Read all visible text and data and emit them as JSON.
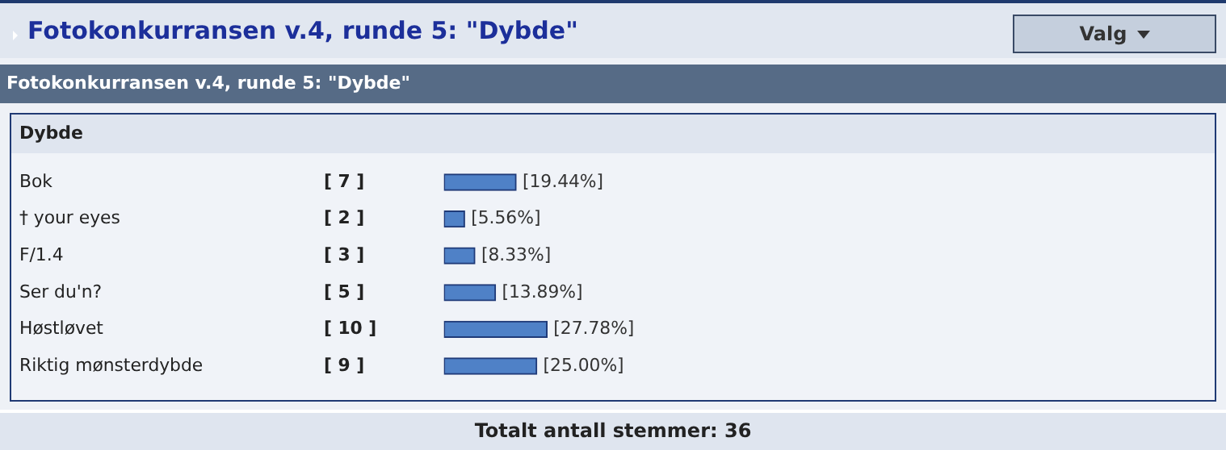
{
  "chart_data": {
    "type": "bar",
    "orientation": "horizontal",
    "title": "Fotokonkurransen v.4, runde 5: \"Dybde\"",
    "subtitle": "Fotokonkurransen v.4, runde 5: \"Dybde\"",
    "categories": [
      "Bok",
      "† your eyes",
      "F/1.4",
      "Ser du'n?",
      "Høstløvet",
      "Riktig mønsterdybde"
    ],
    "values": [
      19.44,
      5.56,
      8.33,
      13.89,
      27.78,
      25.0
    ],
    "value_labels": [
      "[19.44%]",
      "[5.56%]",
      "[8.33%]",
      "[13.89%]",
      "[27.78%]",
      "[25.00%]"
    ],
    "color": "#4f81c7",
    "grid": false,
    "legend": false,
    "annotations": [
      "Valg",
      "Dybde",
      "Totalt antall stemmer: 36",
      "[ 7 ]",
      "[ 2 ]",
      "[ 3 ]",
      "[ 5 ]",
      "[ 10 ]",
      "[ 9 ]"
    ]
  }
}
